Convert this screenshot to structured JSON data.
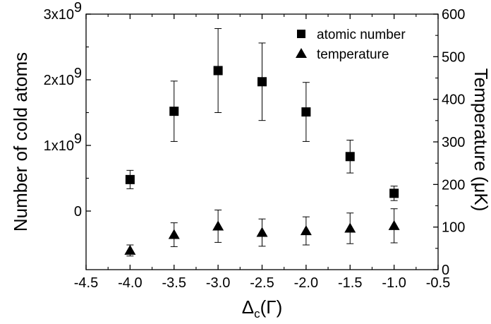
{
  "chart_data": {
    "type": "scatter",
    "title": "",
    "xlabel": "Δc(Γ)",
    "ylabel_left": "Number of cold atoms",
    "ylabel_right": "Temperature (μK)",
    "x_ticks": [
      "-4.5",
      "-4.0",
      "-3.5",
      "-3.0",
      "-2.5",
      "-2.0",
      "-1.5",
      "-1.0",
      "-0.5"
    ],
    "left_ticks": [
      {
        "mantissa": "0",
        "exp": ""
      },
      {
        "mantissa": "1x10",
        "exp": "9"
      },
      {
        "mantissa": "2x10",
        "exp": "9"
      },
      {
        "mantissa": "3x10",
        "exp": "9"
      }
    ],
    "right_ticks": [
      "0",
      "100",
      "200",
      "300",
      "400",
      "500",
      "600"
    ],
    "xlim": [
      -4.5,
      -0.5
    ],
    "ylim_right": [
      0,
      600
    ],
    "ylim_left_units": "1e9 atoms",
    "legend_position": "top-right",
    "series": [
      {
        "name": "atomic number",
        "marker": "square",
        "axis": "left",
        "x": [
          -4.0,
          -3.5,
          -3.0,
          -2.5,
          -2.0,
          -1.5,
          -1.0
        ],
        "y": [
          0.48,
          1.52,
          2.14,
          1.97,
          1.51,
          0.83,
          0.27
        ],
        "err": [
          0.14,
          0.46,
          0.64,
          0.59,
          0.45,
          0.25,
          0.11
        ]
      },
      {
        "name": "temperature",
        "marker": "triangle",
        "axis": "right",
        "x": [
          -4.0,
          -3.5,
          -3.0,
          -2.5,
          -2.0,
          -1.5,
          -1.0
        ],
        "y": [
          45,
          82,
          102,
          87,
          91,
          97,
          103
        ],
        "err": [
          13,
          28,
          38,
          32,
          33,
          36,
          40
        ]
      }
    ]
  }
}
